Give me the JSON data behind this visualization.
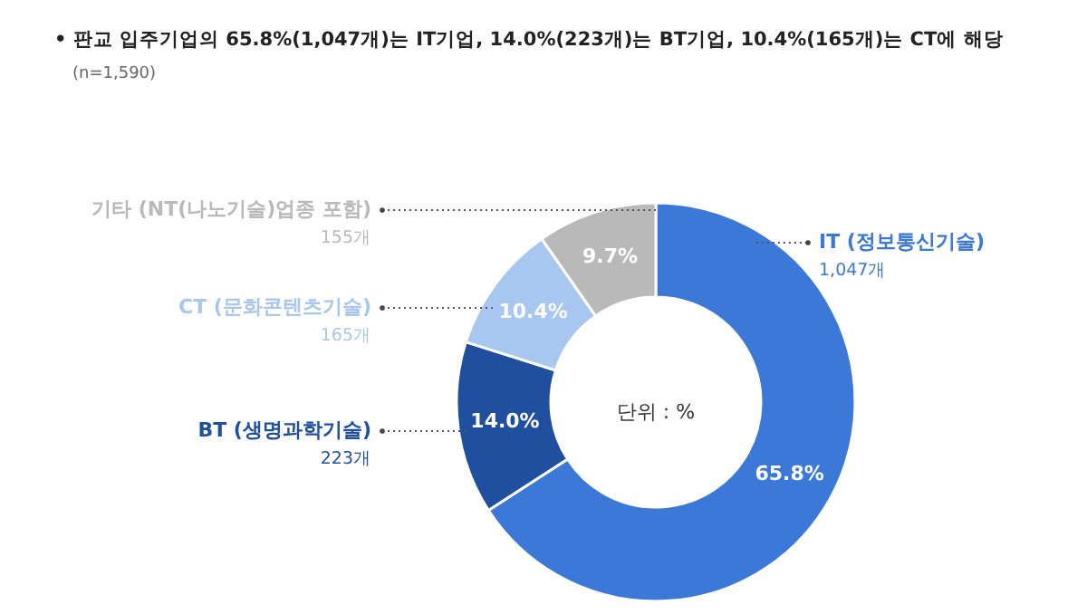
{
  "chart_data": {
    "type": "donut",
    "title": "• 판교 입주기업의 65.8%(1,047개)는 IT기업, 14.0%(223개)는 BT기업, 10.4%(165개)는 CT에 해당",
    "subtitle": "(n=1,590)",
    "categories": [
      "IT (정보통신기술)",
      "BT (생명과학기술)",
      "CT (문화콘텐츠기술)",
      "기타 (NT(나노기술)업종 포함)"
    ],
    "values": [
      65.8,
      14.0,
      10.4,
      9.7
    ],
    "colors": [
      "#3b78d8",
      "#1f4f9e",
      "#a8c7f0",
      "#b9b9b9"
    ],
    "value_labels": [
      "65.8%",
      "14.0%",
      "10.4%",
      "9.7%"
    ],
    "annotations": [
      "1,047개",
      "223개",
      "165개",
      "155개",
      "단위 : %"
    ]
  }
}
